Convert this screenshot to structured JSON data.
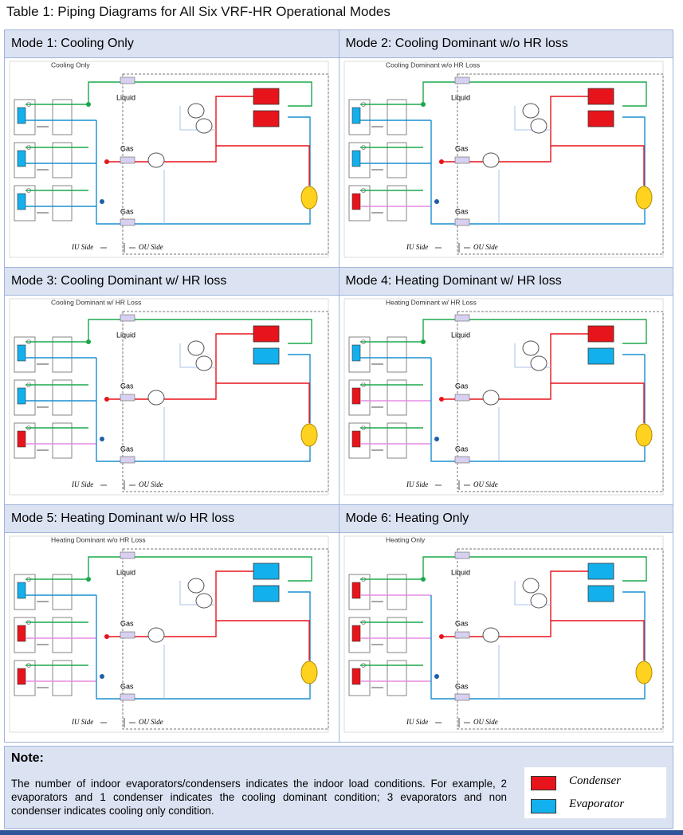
{
  "title": "Table 1: Piping Diagrams for All Six VRF-HR Operational Modes",
  "modes": [
    {
      "heading": "Mode 1: Cooling Only",
      "diagram_title": "Cooling Only",
      "liquid_label": "Liquid",
      "gas_labels": [
        "Gas",
        "Gas"
      ],
      "iu_side": "IU Side",
      "ou_side": "OU Side"
    },
    {
      "heading": "Mode 2: Cooling Dominant w/o HR loss",
      "diagram_title": "Cooling Dominant w/o HR Loss",
      "liquid_label": "Liquid",
      "gas_labels": [
        "Gas",
        "Gas"
      ],
      "iu_side": "IU Side",
      "ou_side": "OU Side"
    },
    {
      "heading": "Mode 3: Cooling Dominant w/ HR loss",
      "diagram_title": "Cooling Dominant w/ HR Loss",
      "liquid_label": "Liquid",
      "gas_labels": [
        "Gas",
        "Gas"
      ],
      "iu_side": "IU Side",
      "ou_side": "OU Side"
    },
    {
      "heading": "Mode 4: Heating Dominant w/ HR loss",
      "diagram_title": "Heating Dominant w/ HR Loss",
      "liquid_label": "Liquid",
      "gas_labels": [
        "Gas",
        "Gas"
      ],
      "iu_side": "IU Side",
      "ou_side": "OU Side"
    },
    {
      "heading": "Mode 5: Heating Dominant w/o HR loss",
      "diagram_title": "Heating Dominant w/o HR Loss",
      "liquid_label": "Liquid",
      "gas_labels": [
        "Gas",
        "Gas"
      ],
      "iu_side": "IU Side",
      "ou_side": "OU Side"
    },
    {
      "heading": "Mode 6: Heating Only",
      "diagram_title": "Heating Only",
      "liquid_label": "Liquid",
      "gas_labels": [
        "Gas",
        "Gas"
      ],
      "iu_side": "IU Side",
      "ou_side": "OU Side"
    }
  ],
  "note": {
    "heading": "Note:",
    "text": "The number of indoor evaporators/condensers indicates the indoor load conditions. For example, 2 evaporators and 1 condenser indicates the cooling dominant condition; 3 evaporators and non condenser indicates cooling only condition.",
    "legend": [
      "Condenser",
      "Evaporator"
    ]
  }
}
